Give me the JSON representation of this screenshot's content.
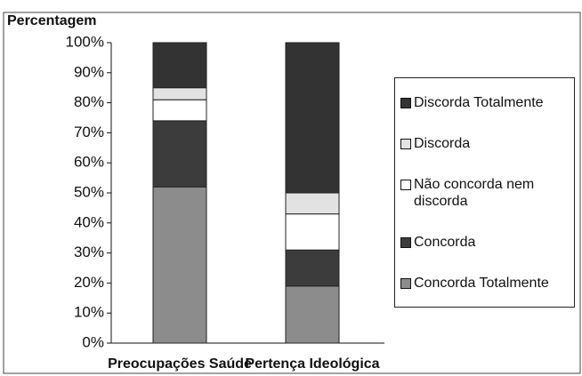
{
  "chart_data": {
    "type": "stacked_bar",
    "y_label": "Percentagem",
    "categories": [
      "Preocupações Saúde",
      "Pertença Ideológica"
    ],
    "series": [
      {
        "name": "Concorda Totalmente",
        "color": "#8c8c8c",
        "values": [
          52,
          19
        ]
      },
      {
        "name": "Concorda",
        "color": "#3c3c3c",
        "values": [
          22,
          12
        ]
      },
      {
        "name": "Não concorda nem discorda",
        "color": "#ffffff",
        "values": [
          7,
          12
        ]
      },
      {
        "name": "Discorda",
        "color": "#e2e2e2",
        "values": [
          4,
          7
        ]
      },
      {
        "name": "Discorda Totalmente",
        "color": "#333333",
        "values": [
          15,
          50
        ]
      }
    ],
    "ylim": [
      0,
      100
    ],
    "yticks": [
      {
        "value": 0,
        "label": "0%"
      },
      {
        "value": 10,
        "label": "10%"
      },
      {
        "value": 20,
        "label": "20%"
      },
      {
        "value": 30,
        "label": "30%"
      },
      {
        "value": 40,
        "label": "40%"
      },
      {
        "value": 50,
        "label": "50%"
      },
      {
        "value": 60,
        "label": "60%"
      },
      {
        "value": 70,
        "label": "70%"
      },
      {
        "value": 80,
        "label": "80%"
      },
      {
        "value": 90,
        "label": "90%"
      },
      {
        "value": 100,
        "label": "100%"
      }
    ],
    "legend": "right"
  }
}
